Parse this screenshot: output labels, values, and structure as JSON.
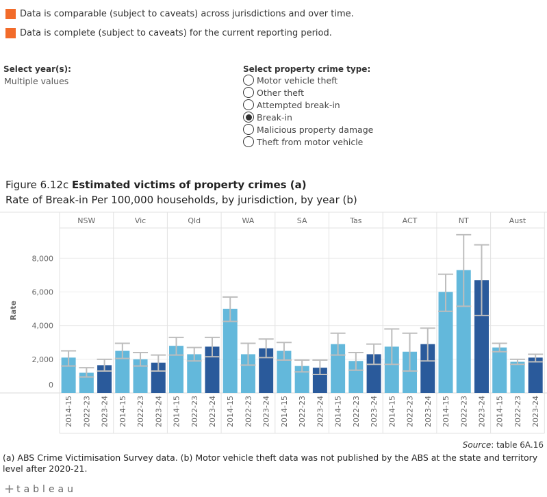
{
  "legend": {
    "items": [
      {
        "text": "Data is comparable (subject to caveats) across jurisdictions and over time.",
        "color": "#f26b2a"
      },
      {
        "text": "Data is complete (subject to caveats) for the current reporting period.",
        "color": "#f26b2a"
      }
    ]
  },
  "year_filter": {
    "label": "Select year(s):",
    "value": "Multiple values"
  },
  "crime_filter": {
    "label": "Select property crime type:",
    "options": [
      {
        "label": "Motor vehicle theft",
        "selected": false
      },
      {
        "label": "Other theft",
        "selected": false
      },
      {
        "label": "Attempted break-in",
        "selected": false
      },
      {
        "label": "Break-in",
        "selected": true
      },
      {
        "label": "Malicious property damage",
        "selected": false
      },
      {
        "label": "Theft from motor vehicle",
        "selected": false
      }
    ]
  },
  "figure": {
    "title_prefix": "Figure 6.12c ",
    "title_bold": "Estimated victims of property crimes (a)",
    "subtitle": "Rate of Break-in Per 100,000 households, by jurisdiction, by year (b)"
  },
  "source": {
    "label": "Source",
    "text": ": table 6A.16"
  },
  "notes": "(a) ABS Crime Victimisation Survey data. (b) Motor vehicle theft data was not published by the ABS at the state and territory level after 2020-21.",
  "footer": {
    "brand": "tableau",
    "plus": "+"
  },
  "colors": {
    "light_bar": "#63b8db",
    "dark_bar": "#2a5a9b",
    "error_bar": "#bdbdbd"
  },
  "chart_data": {
    "type": "bar",
    "ylabel": "Rate",
    "yticks": [
      0,
      2000,
      4000,
      6000,
      8000
    ],
    "ytick_labels": [
      "0",
      "2,000",
      "4,000",
      "6,000",
      "8,000"
    ],
    "ylim": [
      0,
      9800
    ],
    "categories": [
      "2014-15",
      "2022-23",
      "2023-24"
    ],
    "panels": [
      {
        "name": "NSW",
        "values": [
          2100,
          1200,
          1650
        ],
        "ci": [
          [
            1600,
            2500
          ],
          [
            950,
            1500
          ],
          [
            1300,
            2000
          ]
        ]
      },
      {
        "name": "Vic",
        "values": [
          2500,
          2000,
          1800
        ],
        "ci": [
          [
            2050,
            2950
          ],
          [
            1600,
            2400
          ],
          [
            1300,
            2250
          ]
        ]
      },
      {
        "name": "Qld",
        "values": [
          2800,
          2300,
          2750
        ],
        "ci": [
          [
            2250,
            3300
          ],
          [
            1900,
            2700
          ],
          [
            2150,
            3300
          ]
        ]
      },
      {
        "name": "WA",
        "values": [
          5000,
          2300,
          2650
        ],
        "ci": [
          [
            4250,
            5700
          ],
          [
            1650,
            2950
          ],
          [
            2100,
            3200
          ]
        ]
      },
      {
        "name": "SA",
        "values": [
          2500,
          1600,
          1500
        ],
        "ci": [
          [
            1950,
            3000
          ],
          [
            1250,
            1950
          ],
          [
            1100,
            1950
          ]
        ]
      },
      {
        "name": "Tas",
        "values": [
          2900,
          1900,
          2300
        ],
        "ci": [
          [
            2250,
            3550
          ],
          [
            1350,
            2400
          ],
          [
            1700,
            2900
          ]
        ]
      },
      {
        "name": "ACT",
        "values": [
          2750,
          2450,
          2900
        ],
        "ci": [
          [
            1700,
            3800
          ],
          [
            1300,
            3550
          ],
          [
            1900,
            3850
          ]
        ]
      },
      {
        "name": "NT",
        "values": [
          6000,
          7300,
          6700
        ],
        "ci": [
          [
            4850,
            7050
          ],
          [
            5150,
            9400
          ],
          [
            4600,
            8800
          ]
        ]
      },
      {
        "name": "Aust",
        "values": [
          2700,
          1850,
          2100
        ],
        "ci": [
          [
            2450,
            2950
          ],
          [
            1700,
            2000
          ],
          [
            1850,
            2300
          ]
        ]
      }
    ],
    "grid": true,
    "legend": "none"
  }
}
